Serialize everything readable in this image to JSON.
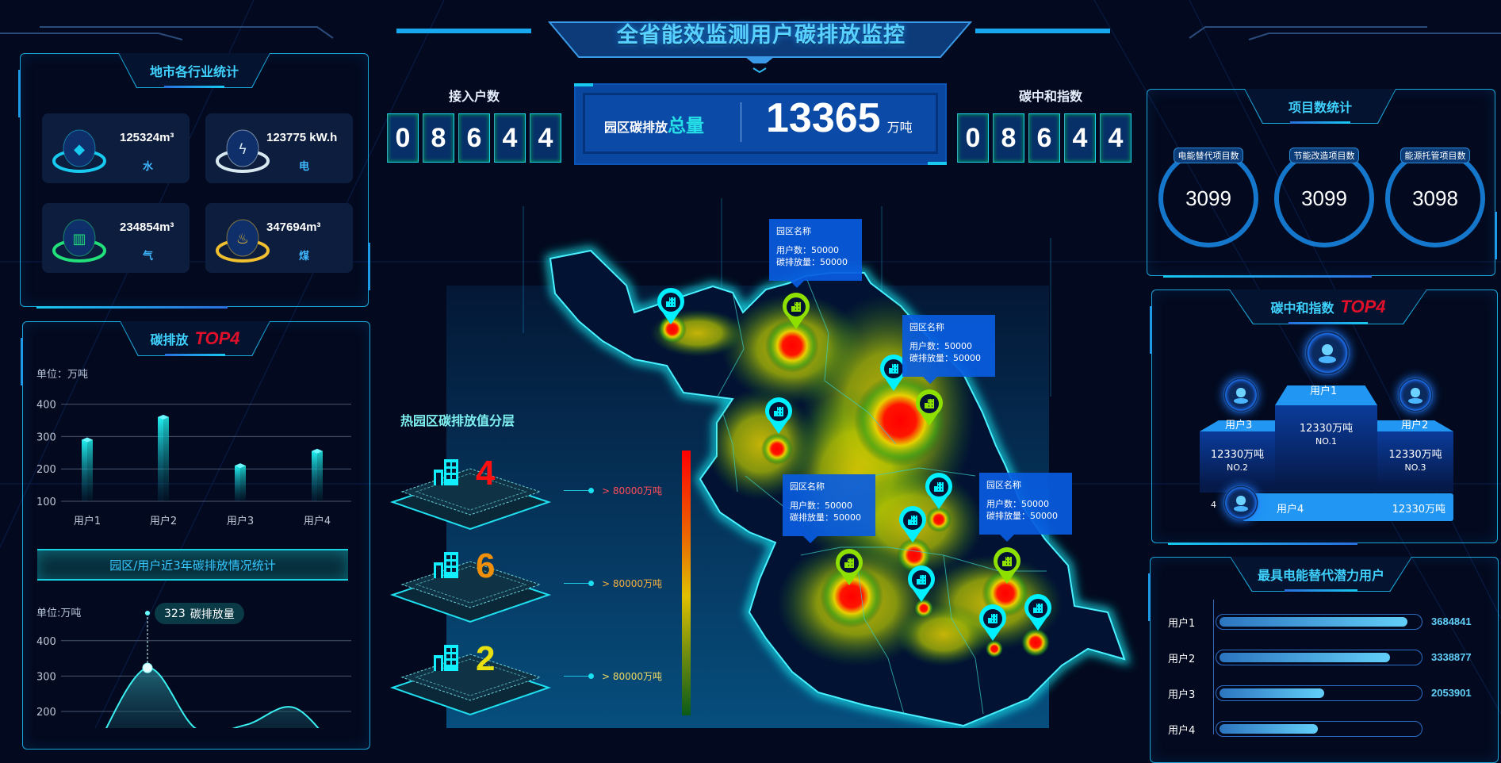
{
  "header": {
    "title": "全省能效监测用户碳排放监控"
  },
  "city_stats": {
    "title": "地市各行业统计",
    "items": [
      {
        "value": "125324",
        "unit": "m³",
        "label": "水",
        "icon": "water-drop-icon",
        "color": "#18c9f0"
      },
      {
        "value": "123775",
        "unit": " kW.h",
        "label": "电",
        "icon": "lightning-icon",
        "color": "#d8e8f0"
      },
      {
        "value": "234854",
        "unit": "m³",
        "label": "气",
        "icon": "gas-icon",
        "color": "#22e07a"
      },
      {
        "value": "347694",
        "unit": "m³",
        "label": "煤",
        "icon": "flame-icon",
        "color": "#f0c030"
      }
    ]
  },
  "carbon_top4": {
    "title": "碳排放",
    "highlight": "TOP4",
    "unit": "单位：万吨"
  },
  "trend": {
    "banner": "园区/用户近3年碳排放情况统计",
    "unit": "单位:万吨",
    "tooltip_value": "323",
    "tooltip_label": "碳排放量"
  },
  "chart_data": [
    {
      "type": "bar",
      "categories": [
        "用户1",
        "用户2",
        "用户3",
        "用户4"
      ],
      "values": [
        290,
        360,
        210,
        255
      ],
      "ylabel": "单位：万吨",
      "ylim": [
        100,
        400
      ],
      "yticks": [
        100,
        200,
        300,
        400
      ],
      "grid": true
    },
    {
      "type": "area",
      "values": [
        110,
        323,
        150,
        162,
        210,
        60
      ],
      "ylabel": "单位:万吨",
      "yticks": [
        200,
        300,
        400
      ],
      "grid": true,
      "highlight": {
        "value": 323,
        "label": "碳排放量"
      }
    }
  ],
  "access": {
    "title": "接入户数",
    "digits": [
      "0",
      "8",
      "6",
      "4",
      "4"
    ]
  },
  "total": {
    "label": "园区碳排放",
    "label_highlight": "总量",
    "value": "13365",
    "unit": "万吨"
  },
  "neutral_index": {
    "title": "碳中和指数",
    "digits": [
      "0",
      "8",
      "6",
      "4",
      "4"
    ]
  },
  "projects": {
    "title": "项目数统计",
    "items": [
      {
        "label": "电能替代项目数",
        "value": "3099"
      },
      {
        "label": "节能改造项目数",
        "value": "3099"
      },
      {
        "label": "能源托管项目数",
        "value": "3098"
      }
    ]
  },
  "neutral_top4": {
    "title": "碳中和指数",
    "highlight": "TOP4",
    "first": {
      "name": "用户1",
      "value": "12330万吨",
      "rank": "NO.1"
    },
    "second": {
      "name": "用户3",
      "value": "12330万吨",
      "rank": "NO.2"
    },
    "third": {
      "name": "用户2",
      "value": "12330万吨",
      "rank": "NO.3"
    },
    "fourth": {
      "rank": "4",
      "name": "用户4",
      "value": "12330万吨"
    }
  },
  "potential": {
    "title": "最具电能替代潜力用户",
    "rows": [
      {
        "name": "用户1",
        "value": "3684841",
        "num": 3684841
      },
      {
        "name": "用户2",
        "value": "3338877",
        "num": 3338877
      },
      {
        "name": "用户3",
        "value": "2053901",
        "num": 2053901
      },
      {
        "name": "用户4",
        "num": 1930000
      }
    ],
    "max": 3930000
  },
  "layers": {
    "title": "热园区碳排放值分层",
    "items": [
      {
        "count": "4",
        "count_color": "#ff1010",
        "label": "> 80000万吨",
        "label_color": "#ff4d5a"
      },
      {
        "count": "6",
        "count_color": "#f0900a",
        "label": "> 80000万吨",
        "label_color": "#f5b040"
      },
      {
        "count": "2",
        "count_color": "#e6e010",
        "label": "> 80000万吨",
        "label_color": "#f0d860"
      }
    ],
    "scale_colors": [
      "#ff0000",
      "#e8c000",
      "#0b5a18"
    ]
  },
  "map": {
    "marker_colors": {
      "cyan": "#00f0ff",
      "green": "#8ee000"
    },
    "tooltips": [
      {
        "title": "园区名称",
        "users": "用户数：50000",
        "emission": "碳排放量：50000"
      },
      {
        "title": "园区名称",
        "users": "用户数：50000",
        "emission": "碳排放量：50000"
      },
      {
        "title": "园区名称",
        "users": "用户数：50000",
        "emission": "碳排放量：50000"
      },
      {
        "title": "园区名称",
        "users": "用户数：50000",
        "emission": "碳排放量：50000"
      }
    ]
  }
}
